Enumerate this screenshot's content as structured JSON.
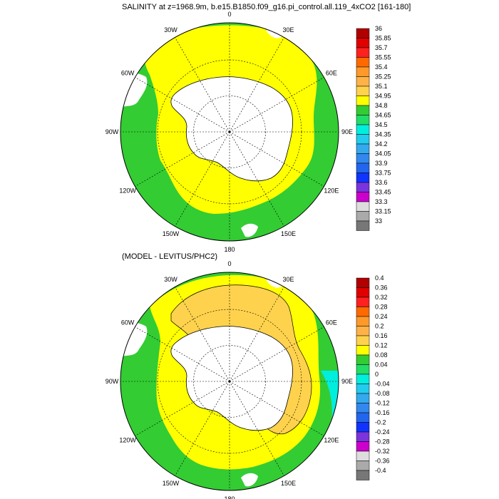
{
  "panels": [
    {
      "id": "top",
      "title": "SALINITY at z=1968.9m, b.e15.B1850.f09_g16.pi_control.all.119_4xCO2 [161-180]",
      "colorbar": {
        "labels": [
          "36",
          "35.85",
          "35.7",
          "35.55",
          "35.4",
          "35.25",
          "35.1",
          "34.95",
          "34.8",
          "34.65",
          "34.5",
          "34.35",
          "34.2",
          "34.05",
          "33.9",
          "33.75",
          "33.6",
          "33.45",
          "33.3",
          "33.15",
          "33"
        ],
        "colors": [
          "#b00000",
          "#e00000",
          "#ff2020",
          "#ff6a00",
          "#ff9a2a",
          "#ffb347",
          "#ffd24d",
          "#ffff00",
          "#33cc33",
          "#22dd66",
          "#00eedd",
          "#22ccee",
          "#33aaee",
          "#3388ee",
          "#2266ee",
          "#1133ff",
          "#7a33dd",
          "#cc00cc",
          "#dddddd",
          "#aaaaaa",
          "#777777"
        ]
      }
    },
    {
      "id": "bottom",
      "title": "(MODEL - LEVITUS/PHC2)",
      "colorbar": {
        "labels": [
          "0.4",
          "0.36",
          "0.32",
          "0.28",
          "0.24",
          "0.2",
          "0.16",
          "0.12",
          "0.08",
          "0.04",
          "0",
          "-0.04",
          "-0.08",
          "-0.12",
          "-0.16",
          "-0.2",
          "-0.24",
          "-0.28",
          "-0.32",
          "-0.36",
          "-0.4"
        ],
        "colors": [
          "#b00000",
          "#e00000",
          "#ff2020",
          "#ff6a00",
          "#ff9a2a",
          "#ffb347",
          "#ffd24d",
          "#ffff00",
          "#33cc33",
          "#22dd66",
          "#00eedd",
          "#22ccee",
          "#33aaee",
          "#3388ee",
          "#2266ee",
          "#1133ff",
          "#7a33dd",
          "#cc00cc",
          "#dddddd",
          "#aaaaaa",
          "#777777"
        ]
      }
    }
  ],
  "lon_labels": [
    "0",
    "30E",
    "60E",
    "90E",
    "120E",
    "150E",
    "180",
    "150W",
    "120W",
    "90W",
    "60W",
    "30W"
  ],
  "colors": {
    "land": "#ffffff",
    "fill_top_outer": "#33cc33",
    "fill_top_inner": "#ffff00",
    "fill_bot_outer": "#33cc33",
    "fill_bot_mid": "#ffff00",
    "fill_bot_inner": "#ffd24d",
    "fill_bot_cyan": "#00eedd"
  }
}
